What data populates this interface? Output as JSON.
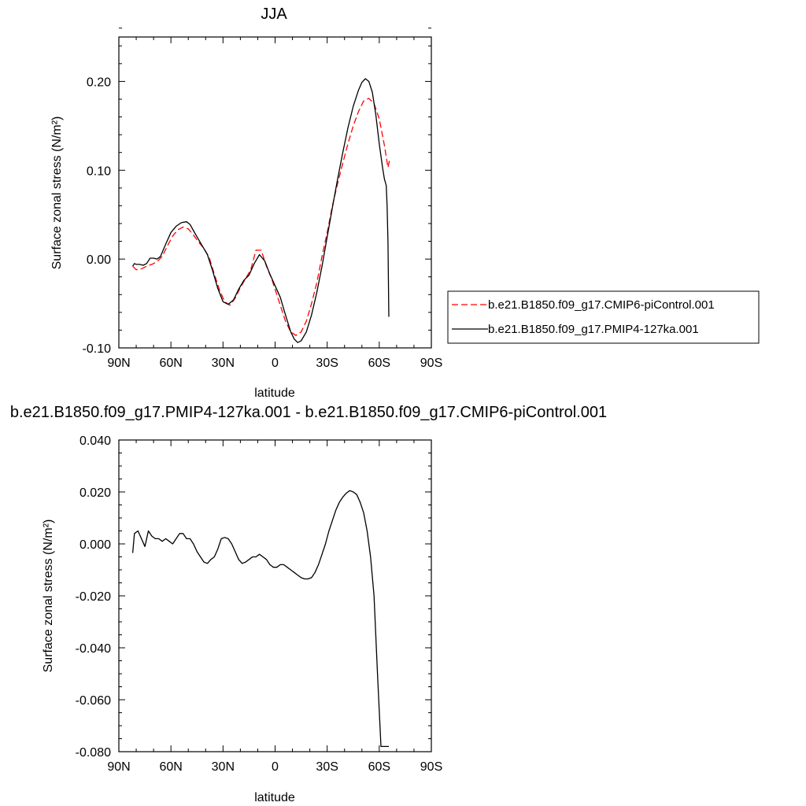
{
  "figure": {
    "title_top": "JJA",
    "title_bottom": "b.e21.B1850.f09_g17.PMIP4-127ka.001 - b.e21.B1850.f09_g17.CMIP6-piControl.001"
  },
  "chart_data": [
    {
      "type": "line",
      "title": "JJA",
      "xlabel": "latitude",
      "ylabel": "Surface zonal stress (N/m²)",
      "xlim": [
        90,
        -90
      ],
      "ylim": [
        -0.1,
        0.25
      ],
      "x_ticks": [
        90,
        60,
        30,
        0,
        -30,
        -60,
        -90
      ],
      "x_tick_labels": [
        "90N",
        "60N",
        "30N",
        "0",
        "30S",
        "60S",
        "90S"
      ],
      "y_ticks": [
        -0.1,
        0.0,
        0.1,
        0.2
      ],
      "y_tick_labels": [
        "-0.10",
        "0.00",
        "0.10",
        "0.20"
      ],
      "grid": false,
      "legend": "right",
      "series": [
        {
          "name": "b.e21.B1850.f09_g17.CMIP6-piControl.001",
          "color": "#ff0000",
          "dash": "dashed",
          "x": [
            82,
            80,
            77,
            74,
            71,
            68,
            65,
            62,
            59,
            56,
            53,
            50,
            47,
            44,
            41,
            38,
            35,
            32,
            29,
            26,
            23,
            20,
            17,
            14,
            11,
            8,
            5,
            2,
            0,
            -3,
            -6,
            -9,
            -12,
            -15,
            -18,
            -21,
            -24,
            -27,
            -30,
            -33,
            -36,
            -39,
            -42,
            -45,
            -48,
            -51,
            -54,
            -57,
            -60,
            -63,
            -65,
            -66
          ],
          "y": [
            -0.008,
            -0.012,
            -0.011,
            -0.008,
            -0.006,
            -0.003,
            0.003,
            0.015,
            0.026,
            0.033,
            0.036,
            0.034,
            0.027,
            0.019,
            0.012,
            0.002,
            -0.017,
            -0.035,
            -0.048,
            -0.052,
            -0.044,
            -0.032,
            -0.022,
            -0.012,
            0.01,
            0.01,
            -0.008,
            -0.022,
            -0.034,
            -0.052,
            -0.07,
            -0.082,
            -0.086,
            -0.082,
            -0.07,
            -0.05,
            -0.027,
            0.003,
            0.03,
            0.06,
            0.085,
            0.108,
            0.13,
            0.15,
            0.166,
            0.178,
            0.181,
            0.175,
            0.158,
            0.128,
            0.103,
            0.112
          ]
        },
        {
          "name": "b.e21.B1850.f09_g17.PMIP4-127ka.001",
          "color": "#000000",
          "dash": "solid",
          "x": [
            82,
            81,
            80,
            78,
            76,
            74,
            72,
            70,
            68,
            66,
            63,
            60,
            57,
            54,
            51,
            49,
            47,
            45,
            42,
            39,
            36,
            33,
            30,
            27,
            24,
            21,
            18,
            15,
            12,
            9,
            6,
            3,
            0,
            -3,
            -6,
            -9,
            -11,
            -13,
            -15,
            -18,
            -21,
            -24,
            -27,
            -30,
            -33,
            -36,
            -39,
            -42,
            -45,
            -48,
            -50,
            -52,
            -54,
            -56,
            -58,
            -60,
            -62,
            -63,
            -64,
            -64.5,
            -65,
            -65.5
          ],
          "y": [
            -0.008,
            -0.005,
            -0.006,
            -0.006,
            -0.007,
            -0.005,
            0.001,
            0.001,
            0.0,
            0.003,
            0.017,
            0.03,
            0.037,
            0.041,
            0.042,
            0.039,
            0.032,
            0.025,
            0.015,
            0.005,
            -0.013,
            -0.033,
            -0.048,
            -0.051,
            -0.046,
            -0.034,
            -0.024,
            -0.018,
            -0.005,
            0.005,
            -0.002,
            -0.017,
            -0.03,
            -0.043,
            -0.063,
            -0.082,
            -0.09,
            -0.094,
            -0.092,
            -0.082,
            -0.063,
            -0.038,
            -0.008,
            0.025,
            0.058,
            0.09,
            0.12,
            0.148,
            0.172,
            0.19,
            0.199,
            0.203,
            0.2,
            0.188,
            0.163,
            0.13,
            0.102,
            0.09,
            0.083,
            0.06,
            0.02,
            -0.065
          ]
        }
      ]
    },
    {
      "type": "line",
      "title": "b.e21.B1850.f09_g17.PMIP4-127ka.001 - b.e21.B1850.f09_g17.CMIP6-piControl.001",
      "xlabel": "latitude",
      "ylabel": "Surface zonal stress (N/m²)",
      "xlim": [
        90,
        -90
      ],
      "ylim": [
        -0.08,
        0.04
      ],
      "x_ticks": [
        90,
        60,
        30,
        0,
        -30,
        -60,
        -90
      ],
      "x_tick_labels": [
        "90N",
        "60N",
        "30N",
        "0",
        "30S",
        "60S",
        "90S"
      ],
      "y_ticks": [
        -0.08,
        -0.06,
        -0.04,
        -0.02,
        0.0,
        0.02,
        0.04
      ],
      "y_tick_labels": [
        "-0.080",
        "-0.060",
        "-0.040",
        "-0.020",
        "0.000",
        "0.020",
        "0.040"
      ],
      "grid": false,
      "series": [
        {
          "color": "#000000",
          "dash": "solid",
          "x": [
            82,
            81,
            79,
            77,
            75,
            73,
            71,
            69,
            67,
            65,
            63,
            61,
            59,
            57,
            55,
            53,
            51,
            49,
            47,
            45,
            43,
            41,
            39,
            37,
            35,
            33,
            31,
            29,
            27,
            25,
            23,
            21,
            19,
            17,
            15,
            13,
            11,
            9,
            7,
            5,
            3,
            1,
            -1,
            -3,
            -5,
            -7,
            -9,
            -11,
            -13,
            -15,
            -17,
            -19,
            -21,
            -23,
            -25,
            -27,
            -29,
            -31,
            -33,
            -35,
            -37,
            -39,
            -41,
            -43,
            -45,
            -47,
            -49,
            -51,
            -53,
            -55,
            -57,
            -59,
            -61,
            -62,
            -63,
            -64,
            -65,
            -65.5
          ],
          "y": [
            -0.0035,
            0.004,
            0.005,
            0.002,
            -0.001,
            0.005,
            0.003,
            0.002,
            0.002,
            0.001,
            0.002,
            0.001,
            0.0,
            0.002,
            0.004,
            0.004,
            0.002,
            0.002,
            0.0,
            -0.003,
            -0.005,
            -0.007,
            -0.0075,
            -0.006,
            -0.005,
            -0.002,
            0.002,
            0.0025,
            0.002,
            0.0,
            -0.003,
            -0.006,
            -0.0075,
            -0.007,
            -0.006,
            -0.005,
            -0.005,
            -0.004,
            -0.005,
            -0.006,
            -0.008,
            -0.009,
            -0.009,
            -0.008,
            -0.008,
            -0.009,
            -0.01,
            -0.011,
            -0.012,
            -0.013,
            -0.0135,
            -0.0135,
            -0.013,
            -0.011,
            -0.008,
            -0.004,
            0.0,
            0.005,
            0.009,
            0.013,
            0.016,
            0.018,
            0.0195,
            0.0205,
            0.02,
            0.019,
            0.016,
            0.012,
            0.005,
            -0.005,
            -0.02,
            -0.05,
            -0.078,
            -0.078,
            -0.078,
            -0.078,
            -0.078,
            -0.078
          ]
        }
      ]
    }
  ]
}
